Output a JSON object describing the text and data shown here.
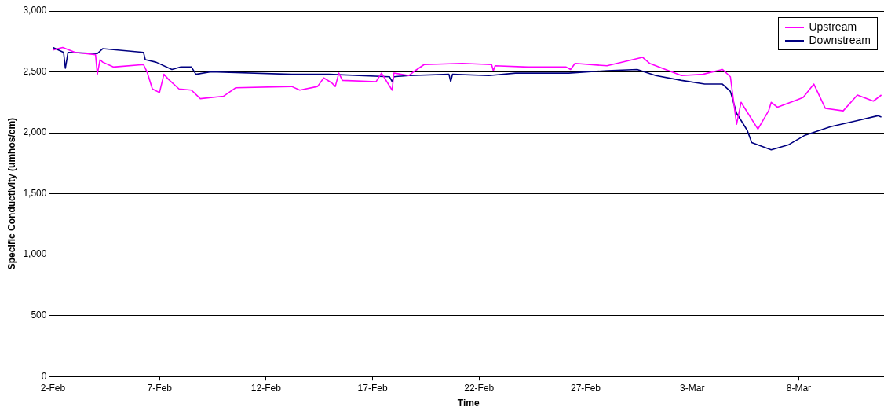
{
  "chart_data": {
    "type": "line",
    "xlabel": "Time",
    "ylabel": "Specific Conductivity (umhos/cm)",
    "xlim": [
      "--02-02",
      "--03-12"
    ],
    "xticks": [
      {
        "value": "--02-02",
        "label": "2-Feb"
      },
      {
        "value": "--02-07",
        "label": "7-Feb"
      },
      {
        "value": "--02-12",
        "label": "12-Feb"
      },
      {
        "value": "--02-17",
        "label": "17-Feb"
      },
      {
        "value": "--02-22",
        "label": "22-Feb"
      },
      {
        "value": "--02-27",
        "label": "27-Feb"
      },
      {
        "value": "--03-03",
        "label": "3-Mar"
      },
      {
        "value": "--03-08",
        "label": "8-Mar"
      }
    ],
    "ylim": [
      0,
      3000
    ],
    "yticks": [
      0,
      500,
      {
        "value": 1000,
        "label": "1,000"
      },
      {
        "value": 1500,
        "label": "1,500"
      },
      {
        "value": 2000,
        "label": "2,000"
      },
      {
        "value": 2500,
        "label": "2,500"
      },
      {
        "value": 3000,
        "label": "3,000"
      }
    ],
    "grid": "y",
    "legend": "top right",
    "marker": "none",
    "line_style": "solid",
    "series": [
      {
        "name": "Upstream",
        "color": "#ff00ff",
        "x": [
          "--02-02T00:00",
          "--02-02T11:00",
          "--02-03T01:00",
          "--02-04T00:00",
          "--02-04T02:00",
          "--02-04T05:00",
          "--02-04T08:00",
          "--02-04T20:00",
          "--02-06T06:00",
          "--02-06T10:00",
          "--02-06T16:00",
          "--02-07T00:00",
          "--02-07T05:00",
          "--02-07T10:00",
          "--02-07T22:00",
          "--02-08T12:00",
          "--02-08T22:00",
          "--02-10T00:00",
          "--02-10T14:00",
          "--02-13T05:00",
          "--02-13T14:00",
          "--02-14T10:00",
          "--02-14T17:00",
          "--02-15T02:00",
          "--02-15T06:00",
          "--02-15T10:00",
          "--02-15T14:00",
          "--02-17T04:00",
          "--02-17T10:00",
          "--02-17T22:00",
          "--02-18T00:00",
          "--02-18T17:00",
          "--02-19T00:00",
          "--02-19T10:00",
          "--02-21T05:00",
          "--02-22T14:00",
          "--02-22T16:00",
          "--02-22T18:00",
          "--02-24T07:00",
          "--02-26T02:00",
          "--02-26T07:00",
          "--02-26T12:00",
          "--02-28T00:00",
          "--02-29T16:00",
          "--03-01T00:00",
          "--03-02T12:00",
          "--03-03T12:00",
          "--03-04T10:00",
          "--03-04T19:00",
          "--03-05T02:00",
          "--03-05T07:00",
          "--03-06T02:00",
          "--03-06T14:00",
          "--03-06T17:00",
          "--03-07T00:00",
          "--03-08T05:00",
          "--03-08T17:00",
          "--03-09T06:00",
          "--03-10T02:00",
          "--03-10T18:00",
          "--03-11T12:00",
          "--03-11T21:00"
        ],
        "values": [
          2680,
          2700,
          2660,
          2640,
          2480,
          2600,
          2580,
          2540,
          2560,
          2500,
          2360,
          2330,
          2480,
          2440,
          2360,
          2350,
          2280,
          2300,
          2370,
          2380,
          2350,
          2380,
          2450,
          2410,
          2380,
          2490,
          2430,
          2420,
          2490,
          2350,
          2490,
          2470,
          2510,
          2560,
          2570,
          2560,
          2510,
          2550,
          2540,
          2540,
          2520,
          2570,
          2550,
          2620,
          2570,
          2470,
          2480,
          2520,
          2460,
          2070,
          2250,
          2030,
          2180,
          2250,
          2210,
          2290,
          2400,
          2200,
          2180,
          2310,
          2260,
          2310
        ]
      },
      {
        "name": "Downstream",
        "color": "#000080",
        "x": [
          "--02-02T00:00",
          "--02-02T12:00",
          "--02-02T14:00",
          "--02-02T17:00",
          "--02-04T02:00",
          "--02-04T08:00",
          "--02-06T06:00",
          "--02-06T08:00",
          "--02-06T20:00",
          "--02-07T14:00",
          "--02-08T00:00",
          "--02-08T12:00",
          "--02-08T17:00",
          "--02-09T10:00",
          "--02-13T05:00",
          "--02-14T23:00",
          "--02-17T19:00",
          "--02-17T22:00",
          "--02-18T00:00",
          "--02-18T17:00",
          "--02-20T14:00",
          "--02-20T16:00",
          "--02-20T18:00",
          "--02-22T11:00",
          "--02-23T17:00",
          "--02-26T05:00",
          "--02-28T00:00",
          "--02-29T10:00",
          "--03-01T07:00",
          "--03-02T12:00",
          "--03-03T14:00",
          "--03-04T10:00",
          "--03-04T19:00",
          "--03-05T02:00",
          "--03-05T14:00",
          "--03-05T19:00",
          "--03-06T17:00",
          "--03-07T12:00",
          "--03-08T07:00",
          "--03-09T12:00",
          "--03-10T18:00",
          "--03-11T17:00",
          "--03-11T21:00"
        ],
        "values": [
          2700,
          2660,
          2530,
          2660,
          2650,
          2690,
          2660,
          2600,
          2580,
          2520,
          2540,
          2540,
          2480,
          2500,
          2480,
          2480,
          2460,
          2420,
          2460,
          2470,
          2480,
          2420,
          2480,
          2470,
          2490,
          2490,
          2510,
          2520,
          2470,
          2430,
          2400,
          2400,
          2340,
          2160,
          2020,
          1920,
          1860,
          1900,
          1980,
          2050,
          2100,
          2140,
          2130
        ]
      }
    ]
  }
}
